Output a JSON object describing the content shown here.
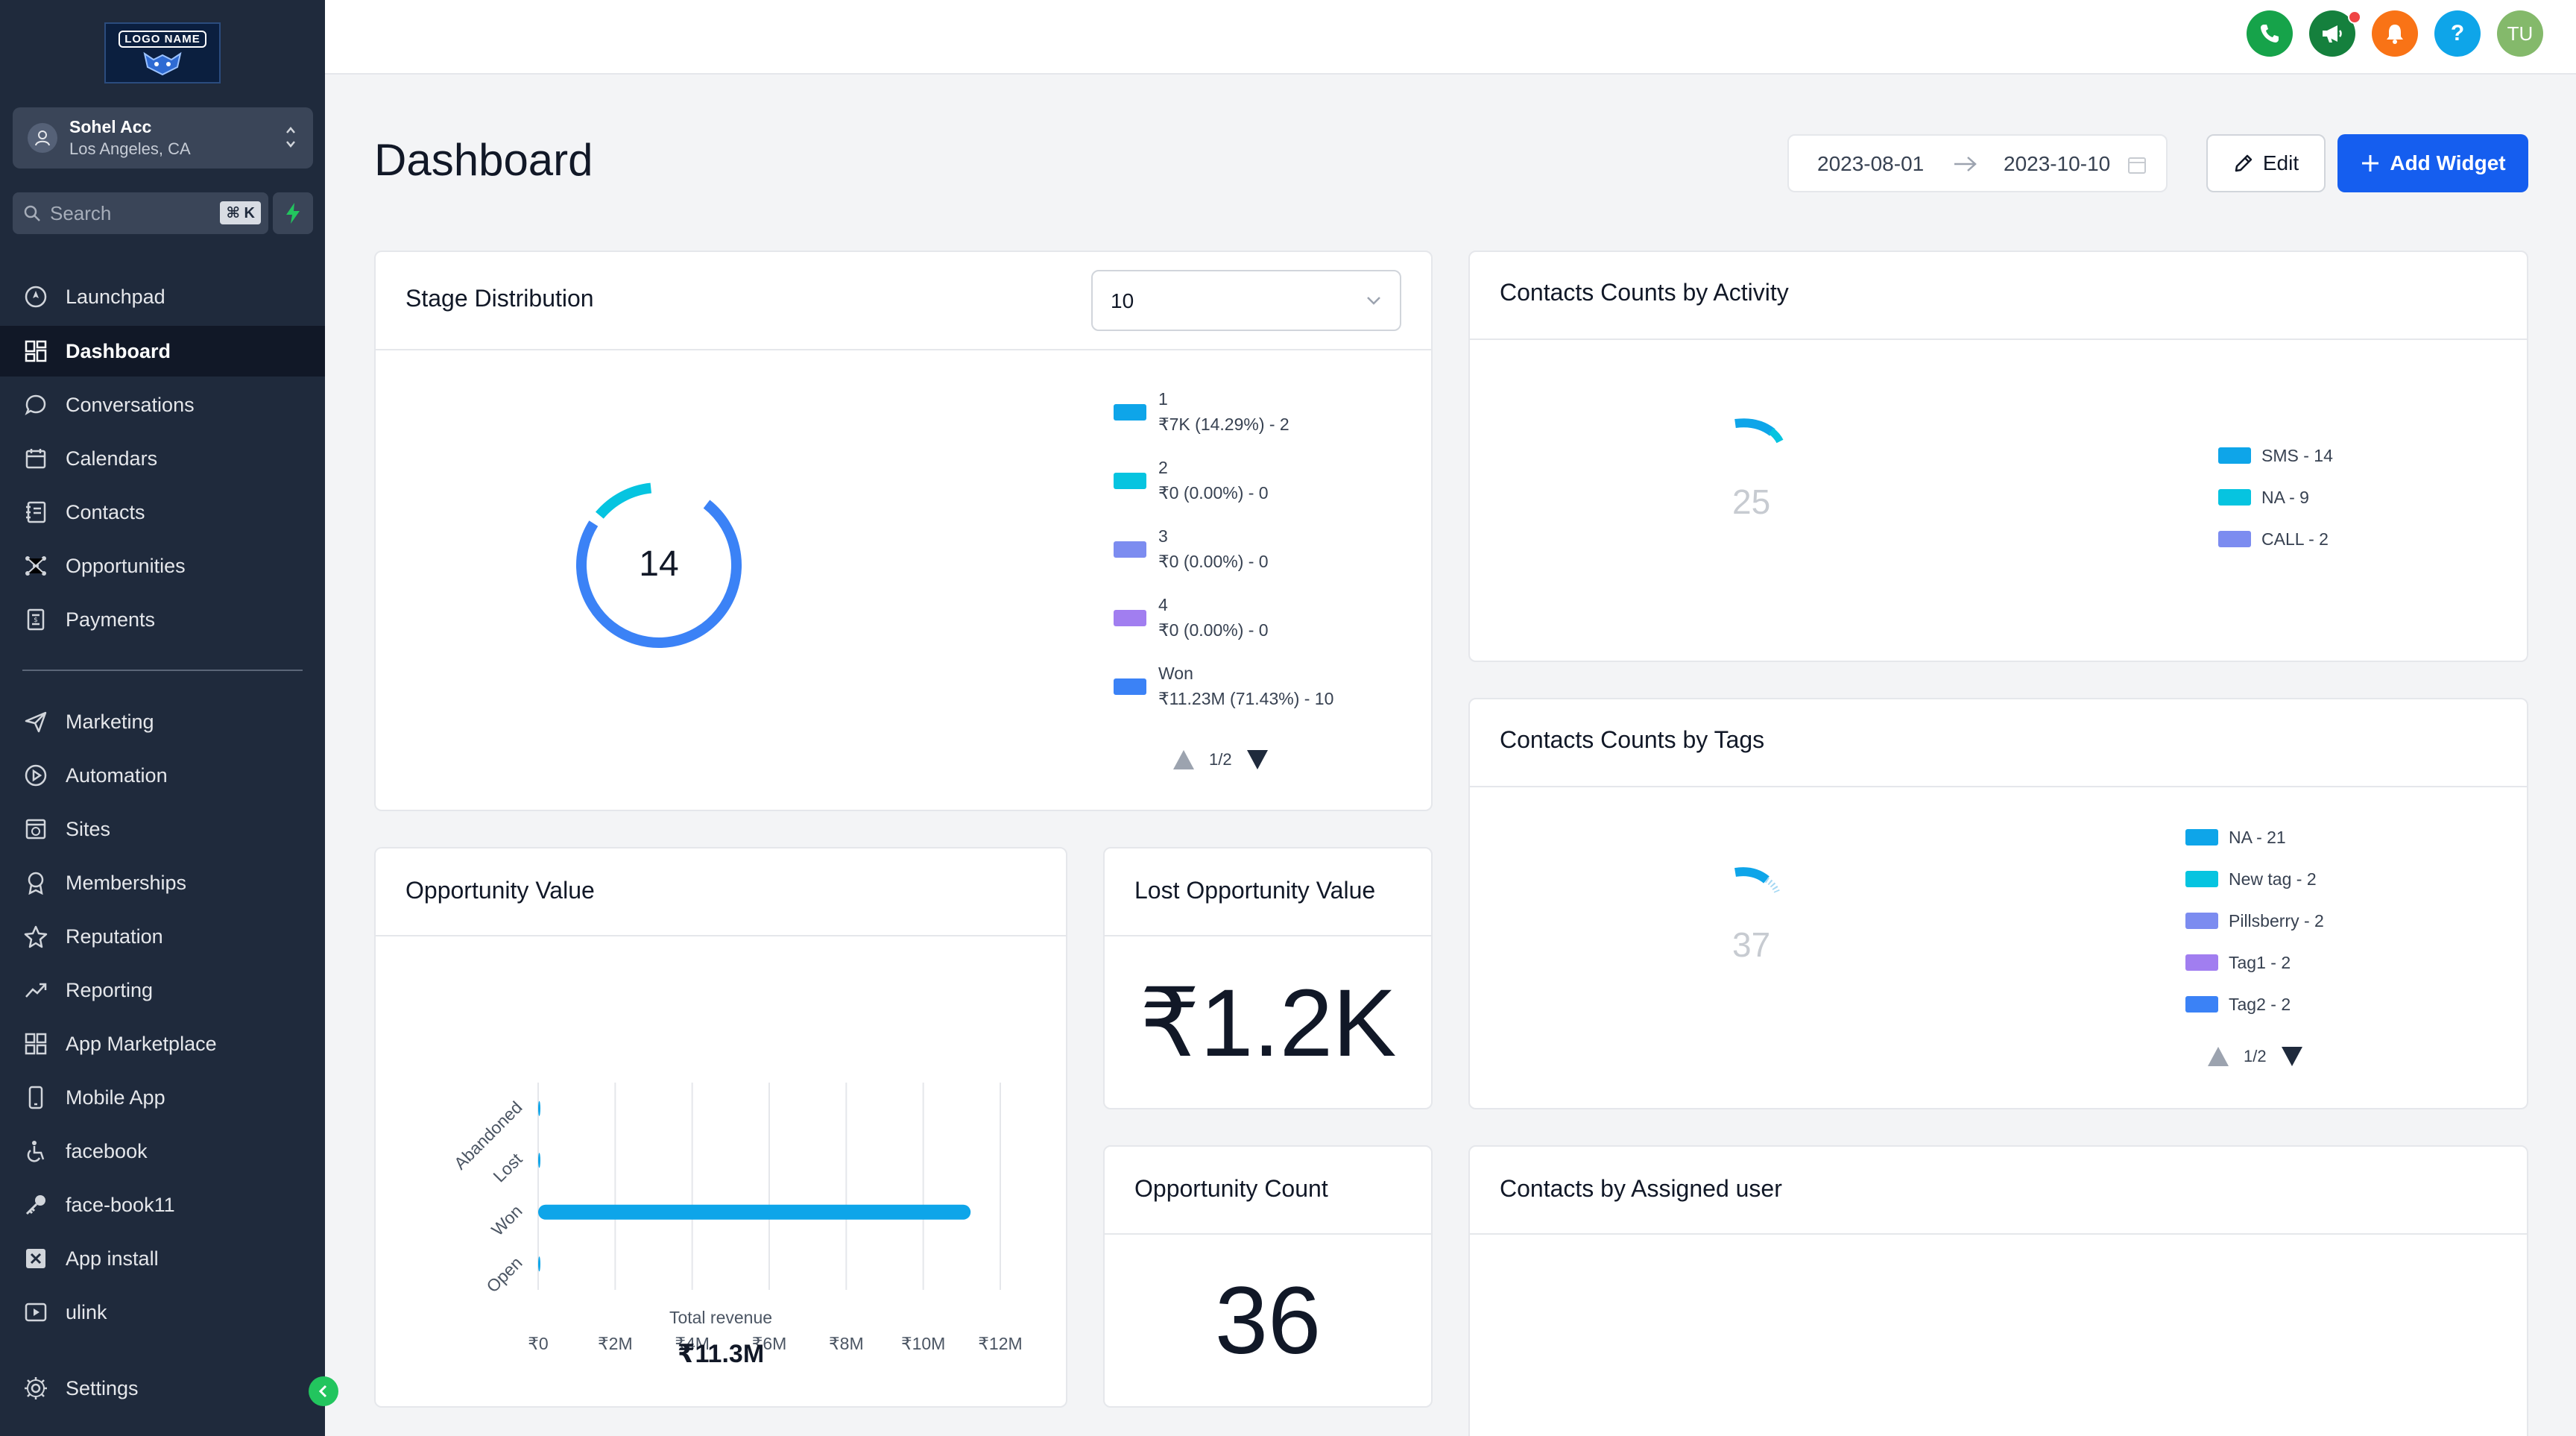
{
  "logo": {
    "text": "LOGO NAME"
  },
  "account": {
    "name": "Sohel Acc",
    "location": "Los Angeles, CA"
  },
  "search": {
    "label": "Search",
    "shortcut": "⌘ K"
  },
  "nav": {
    "top": [
      {
        "label": "Launchpad",
        "icon": "rocket-icon"
      },
      {
        "label": "Dashboard",
        "icon": "dashboard-icon",
        "active": true
      },
      {
        "label": "Conversations",
        "icon": "chat-bubble-icon"
      },
      {
        "label": "Calendars",
        "icon": "calendar-icon"
      },
      {
        "label": "Contacts",
        "icon": "contacts-book-icon"
      },
      {
        "label": "Opportunities",
        "icon": "network-icon"
      },
      {
        "label": "Payments",
        "icon": "receipt-icon"
      }
    ],
    "bottom": [
      {
        "label": "Marketing",
        "icon": "send-icon"
      },
      {
        "label": "Automation",
        "icon": "automation-icon"
      },
      {
        "label": "Sites",
        "icon": "globe-icon"
      },
      {
        "label": "Memberships",
        "icon": "award-icon"
      },
      {
        "label": "Reputation",
        "icon": "star-icon"
      },
      {
        "label": "Reporting",
        "icon": "trend-up-icon"
      },
      {
        "label": "App Marketplace",
        "icon": "grid-icon"
      },
      {
        "label": "Mobile App",
        "icon": "mobile-icon"
      },
      {
        "label": "facebook",
        "icon": "wheelchair-icon"
      },
      {
        "label": "face-book11",
        "icon": "key-icon"
      },
      {
        "label": "App install",
        "icon": "close-box-icon"
      },
      {
        "label": "ulink",
        "icon": "play-box-icon"
      }
    ],
    "settings": {
      "label": "Settings",
      "icon": "gear-icon"
    }
  },
  "topbar": {
    "icons": [
      "phone-icon",
      "megaphone-icon",
      "bell-icon",
      "help-icon",
      "user-avatar"
    ],
    "help_glyph": "?",
    "avatar_initials": "TU",
    "colors": {
      "phone": "#16a34a",
      "megaphone": "#15803d",
      "bell": "#f97316",
      "help": "#0ea5e9",
      "avatar": "#84b96b",
      "notif_dot": "#ef4444"
    }
  },
  "header": {
    "title": "Dashboard",
    "date_start": "2023-08-01",
    "date_end": "2023-10-10",
    "edit_label": "Edit",
    "add_widget_label": "Add Widget"
  },
  "stage_distribution": {
    "title": "Stage Distribution",
    "select_value": "10",
    "center_value": "14",
    "pager": "1/2",
    "legend": [
      {
        "name": "1",
        "detail": "₹7K (14.29%) - 2",
        "color": "#0ea5e9",
        "pct": 14.29
      },
      {
        "name": "2",
        "detail": "₹0 (0.00%) - 0",
        "color": "#06c4e0",
        "pct": 0
      },
      {
        "name": "3",
        "detail": "₹0 (0.00%) - 0",
        "color": "#7c8cf0",
        "pct": 0
      },
      {
        "name": "4",
        "detail": "₹0 (0.00%) - 0",
        "color": "#a17ef0",
        "pct": 0
      },
      {
        "name": "Won",
        "detail": "₹11.23M (71.43%) - 10",
        "color": "#3b82f6",
        "pct": 71.43
      }
    ]
  },
  "contacts_by_activity": {
    "title": "Contacts Counts by Activity",
    "center_value": "25",
    "legend": [
      {
        "label": "SMS - 14",
        "color": "#0ea5e9"
      },
      {
        "label": "NA - 9",
        "color": "#06c4e0"
      },
      {
        "label": "CALL - 2",
        "color": "#7c8cf0"
      }
    ]
  },
  "contacts_by_tags": {
    "title": "Contacts Counts by Tags",
    "center_value": "37",
    "pager": "1/2",
    "legend": [
      {
        "label": "NA - 21",
        "color": "#0ea5e9"
      },
      {
        "label": "New tag - 2",
        "color": "#06c4e0"
      },
      {
        "label": "Pillsberry - 2",
        "color": "#7c8cf0"
      },
      {
        "label": "Tag1 - 2",
        "color": "#a17ef0"
      },
      {
        "label": "Tag2 - 2",
        "color": "#3b82f6"
      }
    ]
  },
  "opportunity_value": {
    "title": "Opportunity Value",
    "total_label": "Total revenue",
    "total_value": "₹11.3M"
  },
  "lost_opportunity": {
    "title": "Lost Opportunity Value",
    "value": "₹1.2K"
  },
  "opportunity_count": {
    "title": "Opportunity Count",
    "value": "36"
  },
  "contacts_by_user": {
    "title": "Contacts by Assigned user"
  },
  "chart_data": {
    "type": "bar",
    "orientation": "horizontal",
    "categories": [
      "Abandoned",
      "Lost",
      "Won",
      "Open"
    ],
    "values": [
      0,
      0.0012,
      11.23,
      0.007
    ],
    "unit": "₹M",
    "xticks": [
      "₹0",
      "₹2M",
      "₹4M",
      "₹6M",
      "₹8M",
      "₹10M",
      "₹12M"
    ],
    "xlim": [
      0,
      12
    ],
    "grid": true,
    "color": "#0ea5e9"
  }
}
